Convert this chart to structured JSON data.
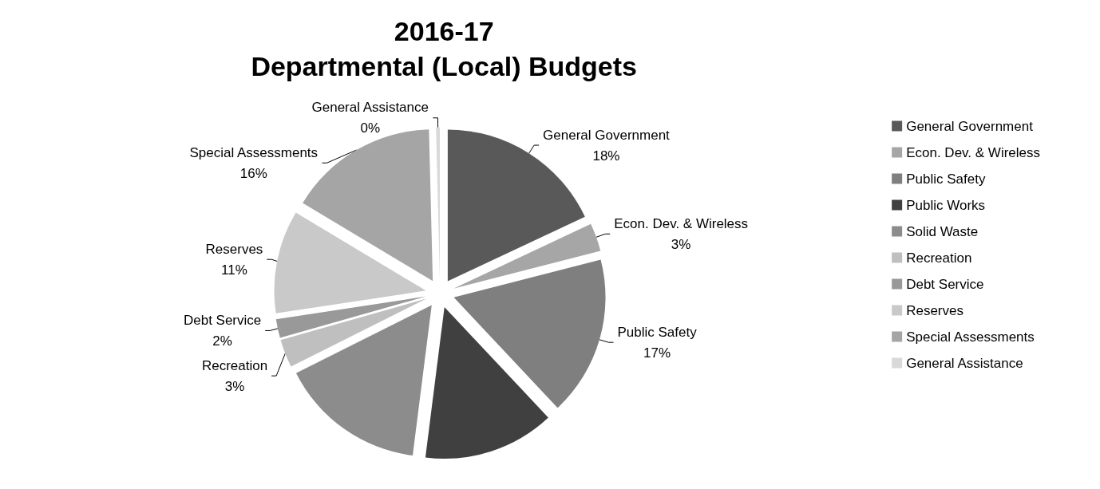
{
  "chart_data": {
    "type": "pie",
    "title": "2016-17\nDepartmental (Local) Budgets",
    "categories": [
      "General Government",
      "Econ. Dev. & Wireless",
      "Public Safety",
      "Public Works",
      "Solid Waste",
      "Recreation",
      "Debt Service",
      "Reserves",
      "Special Assessments",
      "General Assistance"
    ],
    "values": [
      18,
      3,
      17,
      14,
      15.6,
      3,
      2,
      11,
      16,
      0.4
    ],
    "value_labels": [
      "18%",
      "3%",
      "17%",
      null,
      null,
      "3%",
      "2%",
      "11%",
      "16%",
      "0%"
    ],
    "colors": [
      "#595959",
      "#a6a6a6",
      "#7f7f7f",
      "#404040",
      "#8c8c8c",
      "#bfbfbf",
      "#999999",
      "#c9c9c9",
      "#a5a5a5",
      "#d9d9d9"
    ],
    "legend": "right"
  }
}
